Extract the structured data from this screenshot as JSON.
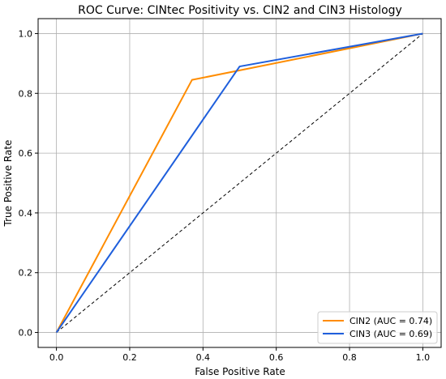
{
  "chart_data": {
    "type": "line",
    "title": "ROC Curve: CINtec Positivity vs. CIN2 and CIN3 Histology",
    "xlabel": "False Positive Rate",
    "ylabel": "True Positive Rate",
    "xlim": [
      -0.05,
      1.05
    ],
    "ylim": [
      -0.05,
      1.05
    ],
    "xticks": [
      "0.0",
      "0.2",
      "0.4",
      "0.6",
      "0.8",
      "1.0"
    ],
    "yticks": [
      "0.0",
      "0.2",
      "0.4",
      "0.6",
      "0.8",
      "1.0"
    ],
    "grid": true,
    "legend_position": "bottom-right",
    "series": [
      {
        "name": "CIN2 (AUC = 0.74)",
        "color": "#ff8c00",
        "x": [
          0.0,
          0.37,
          1.0
        ],
        "y": [
          0.0,
          0.845,
          1.0
        ]
      },
      {
        "name": "CIN3 (AUC = 0.69)",
        "color": "#1f5fdc",
        "x": [
          0.0,
          0.5,
          1.0
        ],
        "y": [
          0.0,
          0.89,
          1.0
        ]
      }
    ],
    "reference_line": {
      "x": [
        0,
        1
      ],
      "y": [
        0,
        1
      ],
      "style": "dashed",
      "color": "#000000"
    }
  }
}
